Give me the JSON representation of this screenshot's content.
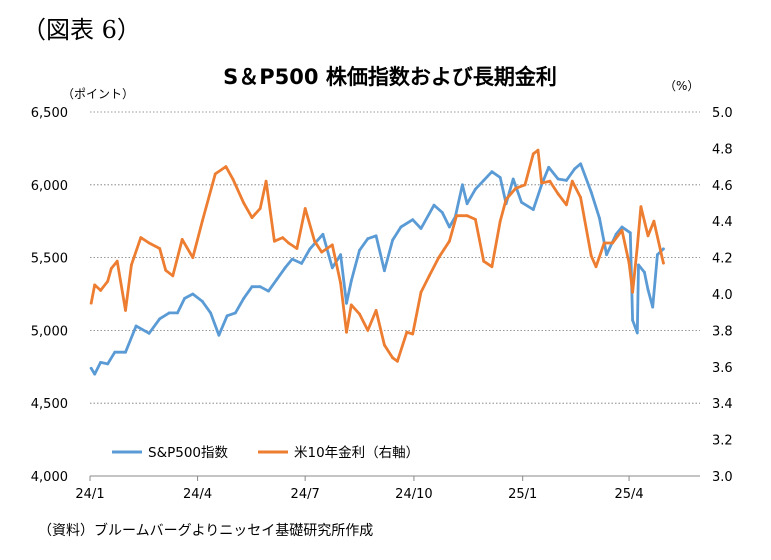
{
  "figure_label": "（図表 6）",
  "source_note": "（資料）ブルームバーグよりニッセイ基礎研究所作成",
  "chart_data": {
    "type": "line",
    "title": "S＆P500 株価指数および長期金利",
    "left_unit": "（ポイント）",
    "right_unit": "（%）",
    "x_ticks": [
      "24/1",
      "24/4",
      "24/7",
      "24/10",
      "25/1",
      "25/4"
    ],
    "x_range": [
      "2024-01-01",
      "2025-05-31"
    ],
    "y_left_ticks": [
      "4,000",
      "4,500",
      "5,000",
      "5,500",
      "6,000",
      "6,500"
    ],
    "y_left_range": [
      4000,
      6500
    ],
    "y_right_ticks": [
      "3.0",
      "3.2",
      "3.4",
      "3.6",
      "3.8",
      "4.0",
      "4.2",
      "4.4",
      "4.6",
      "4.8",
      "5.0"
    ],
    "y_right_range": [
      3.0,
      5.0
    ],
    "grid": "horizontal dotted",
    "legend_position": "bottom-left",
    "series": [
      {
        "name": "S&P500指数",
        "axis": "left",
        "color": "#5b9bd5",
        "points": [
          [
            "2024-01-02",
            4740
          ],
          [
            "2024-01-05",
            4700
          ],
          [
            "2024-01-10",
            4780
          ],
          [
            "2024-01-16",
            4770
          ],
          [
            "2024-01-22",
            4850
          ],
          [
            "2024-01-31",
            4850
          ],
          [
            "2024-02-09",
            5030
          ],
          [
            "2024-02-20",
            4980
          ],
          [
            "2024-02-29",
            5080
          ],
          [
            "2024-03-08",
            5120
          ],
          [
            "2024-03-15",
            5120
          ],
          [
            "2024-03-21",
            5220
          ],
          [
            "2024-03-28",
            5250
          ],
          [
            "2024-04-05",
            5200
          ],
          [
            "2024-04-12",
            5120
          ],
          [
            "2024-04-19",
            4967
          ],
          [
            "2024-04-26",
            5100
          ],
          [
            "2024-05-03",
            5120
          ],
          [
            "2024-05-10",
            5220
          ],
          [
            "2024-05-17",
            5300
          ],
          [
            "2024-05-24",
            5300
          ],
          [
            "2024-05-31",
            5270
          ],
          [
            "2024-06-07",
            5350
          ],
          [
            "2024-06-14",
            5430
          ],
          [
            "2024-06-20",
            5490
          ],
          [
            "2024-06-28",
            5460
          ],
          [
            "2024-07-05",
            5560
          ],
          [
            "2024-07-16",
            5660
          ],
          [
            "2024-07-24",
            5430
          ],
          [
            "2024-07-31",
            5520
          ],
          [
            "2024-08-05",
            5186
          ],
          [
            "2024-08-09",
            5340
          ],
          [
            "2024-08-16",
            5550
          ],
          [
            "2024-08-23",
            5630
          ],
          [
            "2024-08-30",
            5650
          ],
          [
            "2024-09-06",
            5410
          ],
          [
            "2024-09-13",
            5620
          ],
          [
            "2024-09-20",
            5710
          ],
          [
            "2024-09-30",
            5760
          ],
          [
            "2024-10-07",
            5700
          ],
          [
            "2024-10-18",
            5860
          ],
          [
            "2024-10-25",
            5810
          ],
          [
            "2024-10-31",
            5710
          ],
          [
            "2024-11-05",
            5780
          ],
          [
            "2024-11-11",
            6000
          ],
          [
            "2024-11-15",
            5870
          ],
          [
            "2024-11-22",
            5970
          ],
          [
            "2024-11-29",
            6030
          ],
          [
            "2024-12-06",
            6090
          ],
          [
            "2024-12-13",
            6050
          ],
          [
            "2024-12-18",
            5870
          ],
          [
            "2024-12-24",
            6040
          ],
          [
            "2024-12-31",
            5880
          ],
          [
            "2025-01-10",
            5830
          ],
          [
            "2025-01-17",
            6000
          ],
          [
            "2025-01-23",
            6120
          ],
          [
            "2025-01-31",
            6040
          ],
          [
            "2025-02-07",
            6030
          ],
          [
            "2025-02-14",
            6110
          ],
          [
            "2025-02-19",
            6144
          ],
          [
            "2025-02-28",
            5950
          ],
          [
            "2025-03-07",
            5770
          ],
          [
            "2025-03-13",
            5520
          ],
          [
            "2025-03-21",
            5660
          ],
          [
            "2025-03-26",
            5710
          ],
          [
            "2025-04-02",
            5670
          ],
          [
            "2025-04-04",
            5070
          ],
          [
            "2025-04-08",
            4983
          ],
          [
            "2025-04-09",
            5450
          ],
          [
            "2025-04-14",
            5400
          ],
          [
            "2025-04-17",
            5280
          ],
          [
            "2025-04-21",
            5160
          ],
          [
            "2025-04-25",
            5520
          ],
          [
            "2025-04-30",
            5560
          ]
        ]
      },
      {
        "name": "米10年金利（右軸）",
        "axis": "right",
        "color": "#ed7d31",
        "points": [
          [
            "2024-01-02",
            3.95
          ],
          [
            "2024-01-05",
            4.05
          ],
          [
            "2024-01-10",
            4.02
          ],
          [
            "2024-01-16",
            4.07
          ],
          [
            "2024-01-19",
            4.14
          ],
          [
            "2024-01-24",
            4.18
          ],
          [
            "2024-01-31",
            3.91
          ],
          [
            "2024-02-05",
            4.16
          ],
          [
            "2024-02-13",
            4.31
          ],
          [
            "2024-02-20",
            4.28
          ],
          [
            "2024-02-29",
            4.25
          ],
          [
            "2024-03-05",
            4.13
          ],
          [
            "2024-03-11",
            4.1
          ],
          [
            "2024-03-19",
            4.3
          ],
          [
            "2024-03-28",
            4.2
          ],
          [
            "2024-04-05",
            4.4
          ],
          [
            "2024-04-16",
            4.66
          ],
          [
            "2024-04-25",
            4.7
          ],
          [
            "2024-05-01",
            4.63
          ],
          [
            "2024-05-10",
            4.5
          ],
          [
            "2024-05-17",
            4.42
          ],
          [
            "2024-05-24",
            4.47
          ],
          [
            "2024-05-29",
            4.62
          ],
          [
            "2024-06-05",
            4.29
          ],
          [
            "2024-06-12",
            4.31
          ],
          [
            "2024-06-17",
            4.28
          ],
          [
            "2024-06-24",
            4.25
          ],
          [
            "2024-07-01",
            4.47
          ],
          [
            "2024-07-09",
            4.29
          ],
          [
            "2024-07-15",
            4.23
          ],
          [
            "2024-07-24",
            4.27
          ],
          [
            "2024-07-31",
            4.06
          ],
          [
            "2024-08-05",
            3.79
          ],
          [
            "2024-08-09",
            3.94
          ],
          [
            "2024-08-16",
            3.89
          ],
          [
            "2024-08-23",
            3.8
          ],
          [
            "2024-08-30",
            3.91
          ],
          [
            "2024-09-06",
            3.72
          ],
          [
            "2024-09-13",
            3.65
          ],
          [
            "2024-09-17",
            3.63
          ],
          [
            "2024-09-25",
            3.79
          ],
          [
            "2024-09-30",
            3.78
          ],
          [
            "2024-10-07",
            4.01
          ],
          [
            "2024-10-14",
            4.1
          ],
          [
            "2024-10-22",
            4.2
          ],
          [
            "2024-10-31",
            4.29
          ],
          [
            "2024-11-06",
            4.43
          ],
          [
            "2024-11-15",
            4.43
          ],
          [
            "2024-11-22",
            4.41
          ],
          [
            "2024-11-29",
            4.18
          ],
          [
            "2024-12-06",
            4.15
          ],
          [
            "2024-12-13",
            4.4
          ],
          [
            "2024-12-18",
            4.52
          ],
          [
            "2024-12-26",
            4.58
          ],
          [
            "2025-01-03",
            4.6
          ],
          [
            "2025-01-10",
            4.77
          ],
          [
            "2025-01-14",
            4.79
          ],
          [
            "2025-01-17",
            4.61
          ],
          [
            "2025-01-24",
            4.62
          ],
          [
            "2025-01-31",
            4.55
          ],
          [
            "2025-02-07",
            4.49
          ],
          [
            "2025-02-12",
            4.62
          ],
          [
            "2025-02-19",
            4.53
          ],
          [
            "2025-02-28",
            4.21
          ],
          [
            "2025-03-04",
            4.15
          ],
          [
            "2025-03-11",
            4.28
          ],
          [
            "2025-03-18",
            4.28
          ],
          [
            "2025-03-26",
            4.35
          ],
          [
            "2025-04-01",
            4.17
          ],
          [
            "2025-04-04",
            4.01
          ],
          [
            "2025-04-08",
            4.26
          ],
          [
            "2025-04-11",
            4.48
          ],
          [
            "2025-04-17",
            4.32
          ],
          [
            "2025-04-22",
            4.4
          ],
          [
            "2025-04-30",
            4.17
          ]
        ]
      }
    ]
  }
}
